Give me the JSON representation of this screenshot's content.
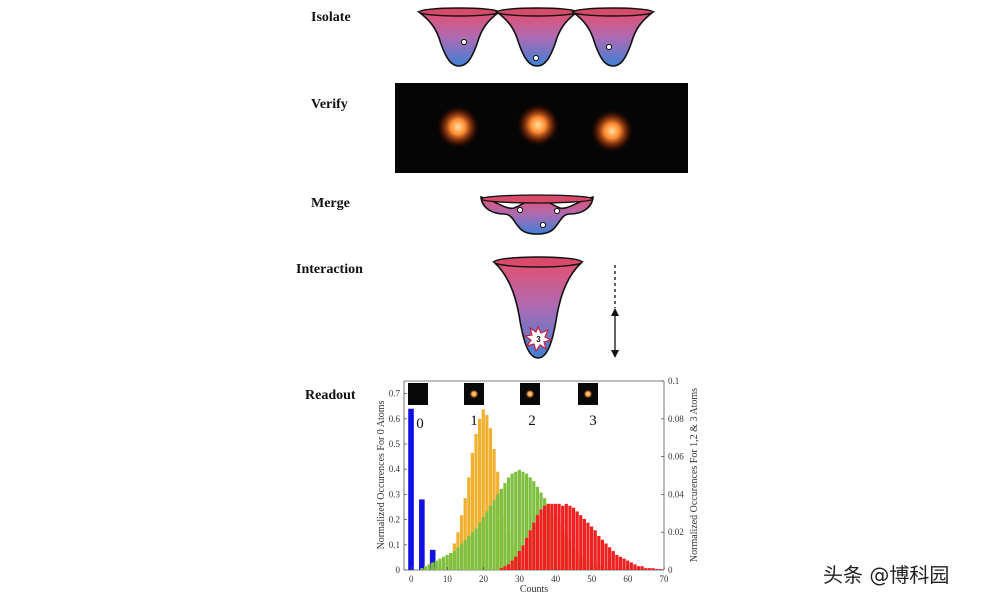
{
  "steps": {
    "isolate": "Isolate",
    "verify": "Verify",
    "merge": "Merge",
    "interaction": "Interaction",
    "readout": "Readout"
  },
  "interaction_marker": "3",
  "watermark": "头条 @博科园",
  "chart_data": {
    "type": "bar",
    "title": "",
    "xlabel": "Counts",
    "ylabel_left": "Normalized Occurences For 0 Atoms",
    "ylabel_right": "Normalized Occurences For 1,2 & 3 Atoms",
    "xlim": [
      -2,
      70
    ],
    "ylim_left": [
      0,
      0.75
    ],
    "ylim_right": [
      0,
      0.1
    ],
    "x_ticks": [
      0,
      10,
      20,
      30,
      40,
      50,
      60,
      70
    ],
    "y_left_ticks": [
      "0",
      "0.1",
      "0.2",
      "0.3",
      "0.4",
      "0.5",
      "0.6",
      "0.7"
    ],
    "y_right_ticks": [
      "0",
      "0.02",
      "0.04",
      "0.06",
      "0.08",
      "0.1"
    ],
    "atom_labels": [
      "0",
      "1",
      "2",
      "3"
    ],
    "grid": false,
    "series": [
      {
        "name": "0",
        "axis": "left",
        "color": "#1010e0",
        "x": [
          0,
          3,
          6
        ],
        "values": [
          0.64,
          0.28,
          0.08
        ]
      },
      {
        "name": "1",
        "axis": "right",
        "color": "#f0b030",
        "x": [
          6,
          7,
          8,
          9,
          10,
          11,
          12,
          13,
          14,
          15,
          16,
          17,
          18,
          19,
          20,
          21,
          22,
          23,
          24,
          25,
          26,
          27,
          28,
          29,
          30,
          31,
          32
        ],
        "values": [
          0.001,
          0.002,
          0.003,
          0.004,
          0.006,
          0.009,
          0.014,
          0.02,
          0.029,
          0.038,
          0.049,
          0.062,
          0.072,
          0.08,
          0.085,
          0.082,
          0.075,
          0.064,
          0.052,
          0.04,
          0.029,
          0.02,
          0.013,
          0.008,
          0.004,
          0.002,
          0.001
        ]
      },
      {
        "name": "2",
        "axis": "right",
        "color": "#80c040",
        "x": [
          3,
          4,
          5,
          6,
          7,
          8,
          9,
          10,
          11,
          12,
          13,
          14,
          15,
          16,
          17,
          18,
          19,
          20,
          21,
          22,
          23,
          24,
          25,
          26,
          27,
          28,
          29,
          30,
          31,
          32,
          33,
          34,
          35,
          36,
          37,
          38,
          39,
          40,
          41,
          42,
          43,
          44,
          45,
          46,
          47,
          48,
          49,
          50,
          51,
          52,
          53,
          54,
          55
        ],
        "values": [
          0.001,
          0.002,
          0.003,
          0.004,
          0.005,
          0.006,
          0.007,
          0.008,
          0.009,
          0.01,
          0.012,
          0.014,
          0.016,
          0.018,
          0.02,
          0.022,
          0.025,
          0.028,
          0.031,
          0.034,
          0.037,
          0.04,
          0.043,
          0.046,
          0.049,
          0.051,
          0.052,
          0.053,
          0.052,
          0.051,
          0.049,
          0.047,
          0.044,
          0.041,
          0.038,
          0.035,
          0.031,
          0.028,
          0.024,
          0.021,
          0.018,
          0.015,
          0.012,
          0.01,
          0.008,
          0.006,
          0.005,
          0.004,
          0.003,
          0.002,
          0.002,
          0.001,
          0.001
        ]
      },
      {
        "name": "3",
        "axis": "right",
        "color": "#ee2020",
        "x": [
          25,
          26,
          27,
          28,
          29,
          30,
          31,
          32,
          33,
          34,
          35,
          36,
          37,
          38,
          39,
          40,
          41,
          42,
          43,
          44,
          45,
          46,
          47,
          48,
          49,
          50,
          51,
          52,
          53,
          54,
          55,
          56,
          57,
          58,
          59,
          60,
          61,
          62,
          63,
          64,
          65,
          66,
          67,
          68,
          69
        ],
        "values": [
          0.001,
          0.002,
          0.003,
          0.005,
          0.007,
          0.01,
          0.013,
          0.017,
          0.021,
          0.025,
          0.029,
          0.032,
          0.034,
          0.035,
          0.035,
          0.035,
          0.035,
          0.034,
          0.035,
          0.034,
          0.033,
          0.031,
          0.029,
          0.027,
          0.025,
          0.023,
          0.021,
          0.018,
          0.016,
          0.014,
          0.012,
          0.01,
          0.008,
          0.007,
          0.006,
          0.005,
          0.004,
          0.003,
          0.002,
          0.002,
          0.001,
          0.001,
          0.001,
          0.0005,
          0.0005
        ]
      }
    ]
  }
}
